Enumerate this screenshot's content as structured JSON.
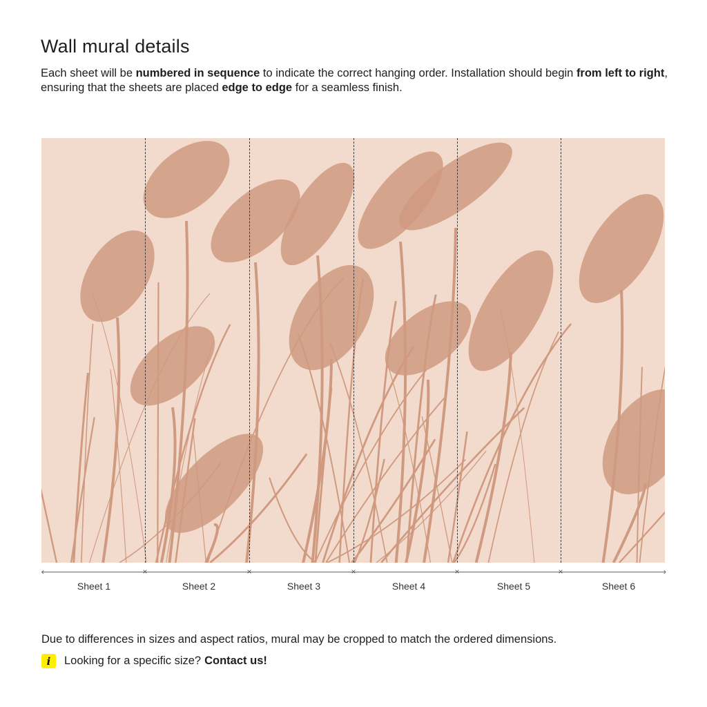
{
  "title": "Wall mural details",
  "intro": {
    "part1": "Each sheet will be ",
    "bold1": "numbered in sequence",
    "part2": " to indicate the correct hanging order. Installation should begin ",
    "bold2": "from left to right",
    "part3": ", ensuring that the sheets are placed ",
    "bold3": "edge to edge",
    "part4": " for a seamless finish."
  },
  "mural": {
    "description_colors": {
      "background": "#f2dbcd",
      "grass": "#cf9a80"
    },
    "sheets": [
      "Sheet 1",
      "Sheet 2",
      "Sheet 3",
      "Sheet 4",
      "Sheet 5",
      "Sheet 6"
    ]
  },
  "footer": {
    "note": "Due to differences in sizes and aspect ratios, mural may be cropped to match the ordered dimensions.",
    "info_icon": "info-icon",
    "question": "Looking for a specific size?",
    "contact_link": "Contact us!"
  }
}
